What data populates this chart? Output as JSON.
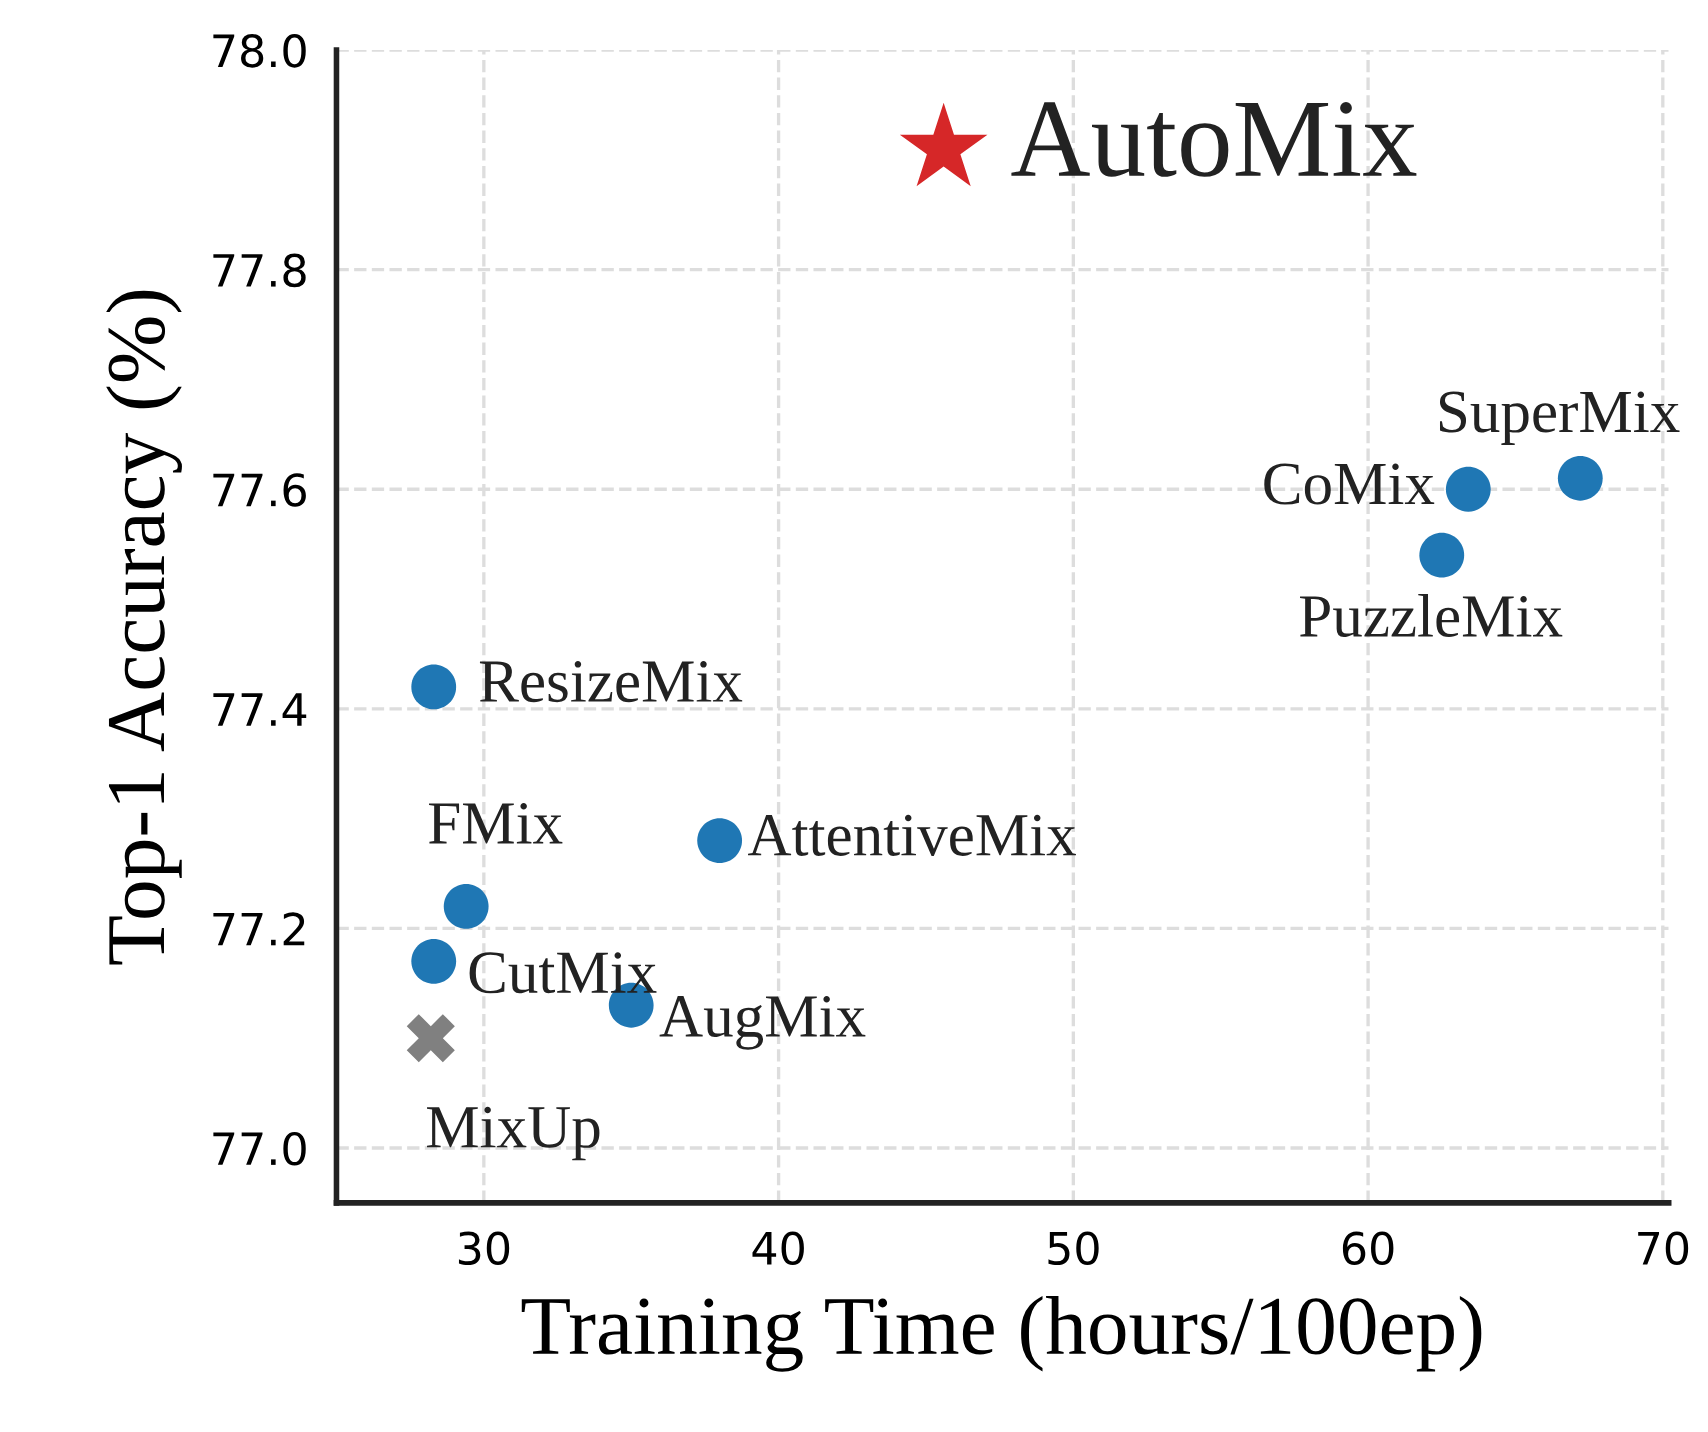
{
  "chart_data": {
    "type": "scatter",
    "xlabel": "Training Time (hours/100ep)",
    "ylabel": "Top-1 Accuracy (%)",
    "xlim": [
      25,
      70.2
    ],
    "ylim": [
      76.95,
      78.0
    ],
    "xticks": [
      30,
      40,
      50,
      60,
      70
    ],
    "yticks": [
      {
        "value": 77.0,
        "label": "77.0"
      },
      {
        "value": 77.2,
        "label": "77.2"
      },
      {
        "value": 77.4,
        "label": "77.4"
      },
      {
        "value": 77.6,
        "label": "77.6"
      },
      {
        "value": 77.8,
        "label": "77.8"
      },
      {
        "value": 78.0,
        "label": "78.0"
      }
    ],
    "grid": true,
    "legend": false,
    "series": [
      {
        "name": "MixUp",
        "color": "#808080",
        "marker": "cross",
        "x": [
          28.2
        ],
        "values": [
          77.1
        ]
      },
      {
        "name": "CutMix",
        "color": "#1f77b4",
        "marker": "circle",
        "x": [
          28.3
        ],
        "values": [
          77.17
        ]
      },
      {
        "name": "FMix",
        "color": "#1f77b4",
        "marker": "circle",
        "x": [
          29.4
        ],
        "values": [
          77.22
        ]
      },
      {
        "name": "AugMix",
        "color": "#1f77b4",
        "marker": "circle",
        "x": [
          35.0
        ],
        "values": [
          77.13
        ]
      },
      {
        "name": "AttentiveMix",
        "color": "#1f77b4",
        "marker": "circle",
        "x": [
          38.0
        ],
        "values": [
          77.28
        ]
      },
      {
        "name": "ResizeMix",
        "color": "#1f77b4",
        "marker": "circle",
        "x": [
          28.3
        ],
        "values": [
          77.42
        ]
      },
      {
        "name": "PuzzleMix",
        "color": "#1f77b4",
        "marker": "circle",
        "x": [
          62.5
        ],
        "values": [
          77.54
        ]
      },
      {
        "name": "CoMix",
        "color": "#1f77b4",
        "marker": "circle",
        "x": [
          63.4
        ],
        "values": [
          77.6
        ]
      },
      {
        "name": "SuperMix",
        "color": "#1f77b4",
        "marker": "circle",
        "x": [
          67.2
        ],
        "values": [
          77.61
        ]
      },
      {
        "name": "AutoMix",
        "color": "#d62728",
        "marker": "star",
        "x": [
          45.6
        ],
        "values": [
          77.91
        ]
      }
    ]
  }
}
